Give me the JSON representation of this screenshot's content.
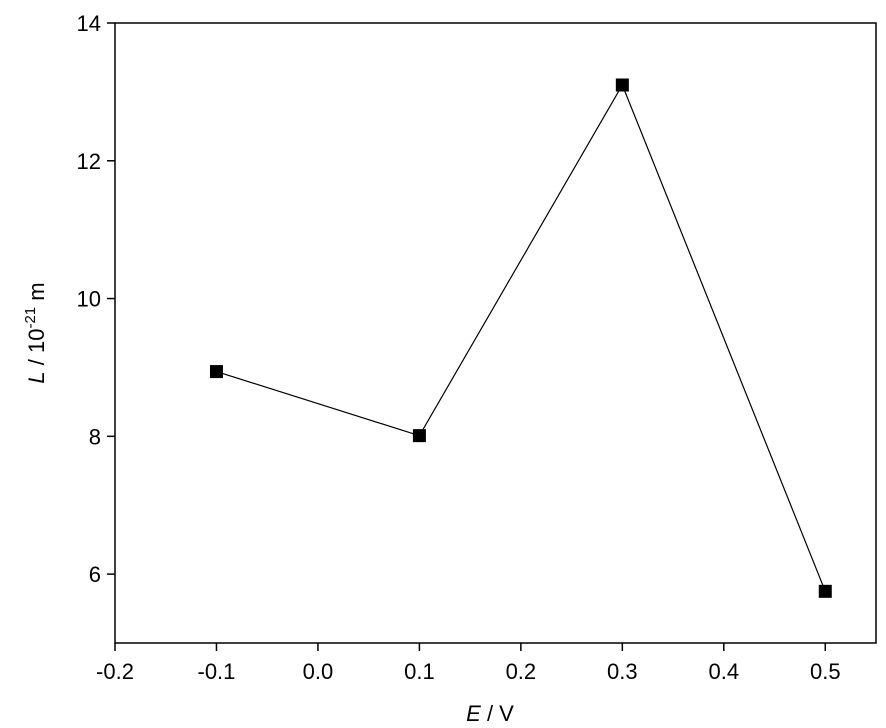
{
  "chart_data": {
    "type": "line",
    "xlabel": [
      "E",
      " / V"
    ],
    "ylabel": [
      "L",
      " / 10",
      "-21",
      " m"
    ],
    "x": [
      -0.1,
      0.1,
      0.3,
      0.5
    ],
    "series": [
      {
        "color": "#000000",
        "values": [
          8.94,
          8.01,
          13.1,
          5.75
        ]
      }
    ],
    "xlim": [
      -0.2,
      0.55
    ],
    "xticks": [
      -0.2,
      -0.1,
      {
        "value": 0,
        "label": "0.0"
      },
      0.1,
      0.2,
      0.3,
      0.4,
      0.5
    ],
    "ylim": [
      5,
      14
    ],
    "yticks": [
      6,
      8,
      10,
      12,
      14
    ]
  }
}
